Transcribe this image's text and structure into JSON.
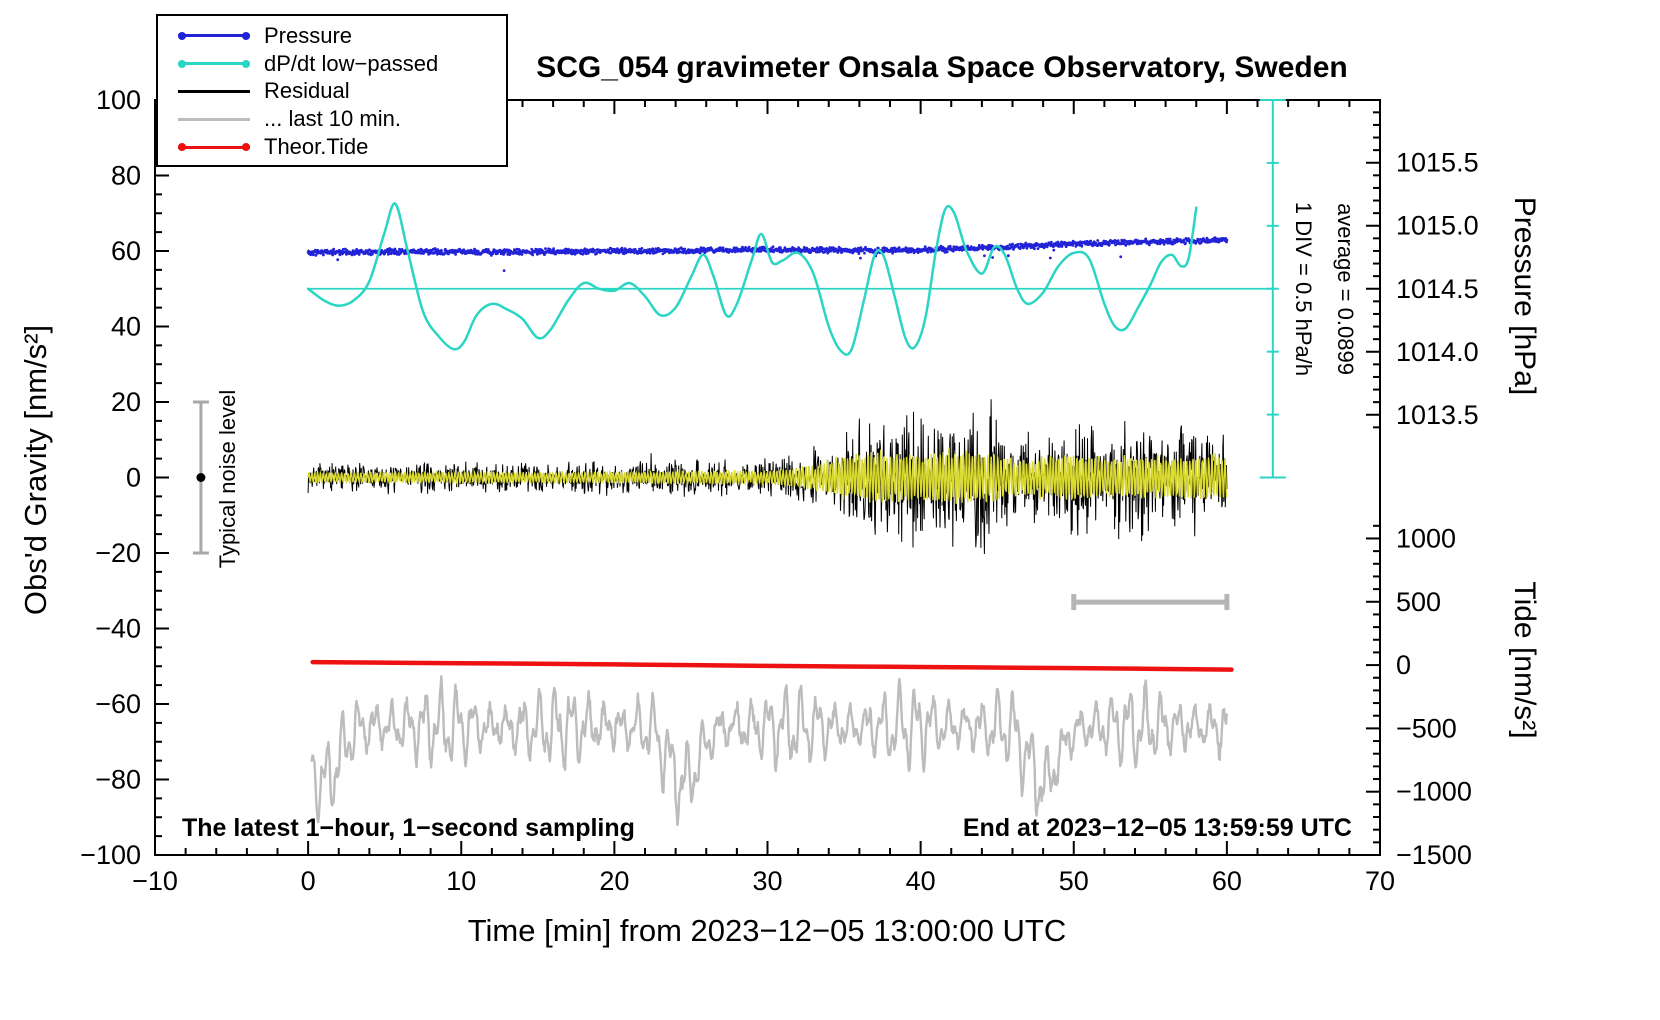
{
  "legend": {
    "items": [
      {
        "label": "Pressure",
        "color": "#2222d6",
        "style": "line-dots"
      },
      {
        "label": "dP/dt low−passed",
        "color": "#2ad5c4",
        "style": "line-dots"
      },
      {
        "label": "Residual",
        "color": "#000000",
        "style": "line"
      },
      {
        "label": "... last 10 min.",
        "color": "#bcbcbc",
        "style": "line"
      },
      {
        "label": "Theor.Tide",
        "color": "#ee1111",
        "style": "line-dots"
      }
    ]
  },
  "chart_data": {
    "type": "line",
    "title": "SCG_054 gravimeter Onsala Space Observatory, Sweden",
    "xlabel": "Time [min] from 2023−12−05 13:00:00 UTC",
    "ylabel": "Obs'd Gravity [nm/s²]",
    "ylabel_pressure": "Pressure [hPa]",
    "ylabel_tide": "Tide [nm/s²]",
    "footnote_left": "The latest 1−hour, 1−second sampling",
    "footnote_right": "End at 2023−12−05 13:59:59 UTC",
    "annotation_div_scale": "1 DIV = 0.5 hPa/h",
    "annotation_average": "average = 0.0899",
    "annotation_noise_level": "Typical noise level",
    "x_range": [
      -10,
      70
    ],
    "y_range": [
      -100,
      100
    ],
    "x_major_ticks": [
      -10,
      0,
      10,
      20,
      30,
      40,
      50,
      60,
      70
    ],
    "x_minor_step": 2,
    "y_major_ticks": [
      100,
      80,
      60,
      40,
      20,
      0,
      -20,
      -40,
      -60,
      -80,
      -100
    ],
    "y_minor_step": 5,
    "pressure_axis": {
      "label_ticks": [
        1015.5,
        1015.0,
        1014.5,
        1014.0,
        1013.5
      ],
      "minor_step": 0.1,
      "minor_range": [
        1013.4,
        1015.9
      ],
      "ref_hpa": 1014.5,
      "ref_gravity": 50,
      "gravity_units_per_hpa": 33.38
    },
    "tide_axis": {
      "label_ticks": [
        1000,
        500,
        0,
        -500,
        -1000,
        -1500
      ],
      "minor_step": 100,
      "minor_range": [
        -1500,
        1100
      ],
      "ref_tide": -1500,
      "ref_gravity": -100,
      "gravity_units_per_tide": 0.03354
    },
    "markers": {
      "noise_level_bar": {
        "x": -7,
        "y_from": -20,
        "y_to": 20,
        "dot_y": 0,
        "color": "#a8a8a8"
      },
      "last10_scale_bar": {
        "x_from": 50,
        "x_to": 60,
        "y": -33,
        "color": "#b5b5b5"
      },
      "average_line": {
        "y": 50,
        "x_from": 0,
        "x_to": 63,
        "color": "#2ad5c4"
      },
      "div_scale_line": {
        "x": 63,
        "y_from": 0,
        "y_to": 100,
        "divisions": 6,
        "color": "#2ad5c4"
      }
    },
    "series": [
      {
        "name": "residual",
        "color": "#000000",
        "render": "noise",
        "t0": 0,
        "t1": 60,
        "sample_step_s": 2,
        "seed": 7,
        "envelope": [
          [
            0,
            3.4
          ],
          [
            10,
            3.5
          ],
          [
            20,
            3.9
          ],
          [
            30,
            4.4
          ],
          [
            32,
            5
          ],
          [
            33,
            6
          ],
          [
            34,
            8
          ],
          [
            35,
            10
          ],
          [
            36,
            12
          ],
          [
            37,
            14
          ],
          [
            38,
            16
          ],
          [
            39,
            18
          ],
          [
            40,
            15
          ],
          [
            41,
            12
          ],
          [
            42,
            16
          ],
          [
            43,
            14
          ],
          [
            44,
            19
          ],
          [
            44.5,
            21
          ],
          [
            45,
            13
          ],
          [
            46,
            10
          ],
          [
            47,
            12
          ],
          [
            48,
            10
          ],
          [
            49,
            12
          ],
          [
            50,
            14
          ],
          [
            51,
            12
          ],
          [
            52,
            10
          ],
          [
            53,
            13
          ],
          [
            54,
            17
          ],
          [
            55,
            12
          ],
          [
            56,
            10
          ],
          [
            57,
            12
          ],
          [
            58,
            14
          ],
          [
            59,
            12
          ],
          [
            60,
            13
          ]
        ]
      },
      {
        "name": "residual_filtered",
        "color": "#d9d92e",
        "render": "osc",
        "t0": 0,
        "t1": 60,
        "sample_step_s": 1.5,
        "seed": 5,
        "freq_cpm": 5,
        "envelope": [
          [
            0,
            1.2
          ],
          [
            20,
            1.3
          ],
          [
            30,
            1.6
          ],
          [
            32,
            2.2
          ],
          [
            34,
            4
          ],
          [
            36,
            5.5
          ],
          [
            38,
            6
          ],
          [
            40,
            5
          ],
          [
            42,
            6
          ],
          [
            44,
            6.2
          ],
          [
            45,
            5
          ],
          [
            47,
            4
          ],
          [
            50,
            5.5
          ],
          [
            52,
            4.5
          ],
          [
            54,
            5
          ],
          [
            56,
            4.5
          ],
          [
            58,
            5
          ],
          [
            60,
            5
          ]
        ]
      },
      {
        "name": "residual_last10",
        "color": "#bcbcbc",
        "render": "gray_osc",
        "t0": 0.2,
        "t1": 60,
        "sample_step_s": 2.5,
        "seed": 9,
        "params": {
          "base": -66,
          "A1": 7.5,
          "p1": 1.07,
          "A2": 4.5,
          "p2": 0.46,
          "noise": 2.2,
          "deep_amp": 15,
          "deep_period": 23.5,
          "deep_phase": 1.3
        }
      },
      {
        "name": "theor_tide",
        "color": "#ee1111",
        "render": "smooth",
        "width": 4.5,
        "points": [
          [
            0.3,
            -48.9
          ],
          [
            10,
            -49.2
          ],
          [
            20,
            -49.5
          ],
          [
            30,
            -49.9
          ],
          [
            40,
            -50.2
          ],
          [
            50,
            -50.5
          ],
          [
            60.3,
            -50.9
          ]
        ]
      },
      {
        "name": "pressure",
        "color": "#2222d6",
        "render": "dots",
        "t0": 0,
        "t1": 60,
        "sample_step_s": 2,
        "seed": 11,
        "noise": 0.55,
        "outlier_prob": 0.004,
        "outlier_depth": 3,
        "points": [
          [
            0,
            59.6
          ],
          [
            6,
            59.9
          ],
          [
            12,
            59.7
          ],
          [
            18,
            59.9
          ],
          [
            24,
            60.0
          ],
          [
            30,
            60.4
          ],
          [
            34,
            60.2
          ],
          [
            38,
            60.1
          ],
          [
            42,
            60.5
          ],
          [
            46,
            61.1
          ],
          [
            50,
            61.9
          ],
          [
            54,
            62.3
          ],
          [
            57,
            62.6
          ],
          [
            60,
            62.9
          ]
        ]
      },
      {
        "name": "dpdt_lowpassed",
        "color": "#2ad5c4",
        "render": "smooth",
        "width": 2.5,
        "points": [
          [
            0,
            50
          ],
          [
            1,
            47
          ],
          [
            2,
            45.5
          ],
          [
            3,
            47
          ],
          [
            4,
            52
          ],
          [
            5,
            65
          ],
          [
            5.7,
            72.5
          ],
          [
            6.5,
            60
          ],
          [
            7.5,
            44
          ],
          [
            8.5,
            37.5
          ],
          [
            9.5,
            34
          ],
          [
            10.2,
            36
          ],
          [
            11,
            43
          ],
          [
            12,
            46
          ],
          [
            13,
            44.5
          ],
          [
            14,
            42
          ],
          [
            15,
            37
          ],
          [
            15.8,
            39
          ],
          [
            17,
            47
          ],
          [
            18,
            51.5
          ],
          [
            19,
            50
          ],
          [
            20,
            49.5
          ],
          [
            21,
            51.5
          ],
          [
            22,
            48
          ],
          [
            23,
            43
          ],
          [
            24,
            45
          ],
          [
            25,
            53
          ],
          [
            25.8,
            59
          ],
          [
            26.5,
            53
          ],
          [
            27.3,
            43
          ],
          [
            28,
            46
          ],
          [
            29,
            58
          ],
          [
            29.6,
            64.5
          ],
          [
            30.3,
            57
          ],
          [
            31,
            57.5
          ],
          [
            32,
            59.5
          ],
          [
            33,
            54
          ],
          [
            34,
            40
          ],
          [
            34.8,
            33.5
          ],
          [
            35.5,
            34
          ],
          [
            36.3,
            47
          ],
          [
            37,
            59
          ],
          [
            37.6,
            58.5
          ],
          [
            38.3,
            48
          ],
          [
            39,
            37
          ],
          [
            39.6,
            34.5
          ],
          [
            40.3,
            42
          ],
          [
            41,
            60
          ],
          [
            41.6,
            71
          ],
          [
            42.2,
            70
          ],
          [
            43,
            60
          ],
          [
            44,
            54
          ],
          [
            44.8,
            61
          ],
          [
            45.5,
            59
          ],
          [
            46.3,
            50
          ],
          [
            47,
            46
          ],
          [
            48,
            49
          ],
          [
            49,
            56
          ],
          [
            50,
            59.5
          ],
          [
            51,
            58
          ],
          [
            52,
            46
          ],
          [
            52.7,
            40
          ],
          [
            53.4,
            39.5
          ],
          [
            54.2,
            45
          ],
          [
            55,
            51
          ],
          [
            55.7,
            57
          ],
          [
            56.4,
            59
          ],
          [
            57,
            56
          ],
          [
            57.5,
            58
          ],
          [
            58,
            71.5
          ]
        ]
      }
    ]
  }
}
